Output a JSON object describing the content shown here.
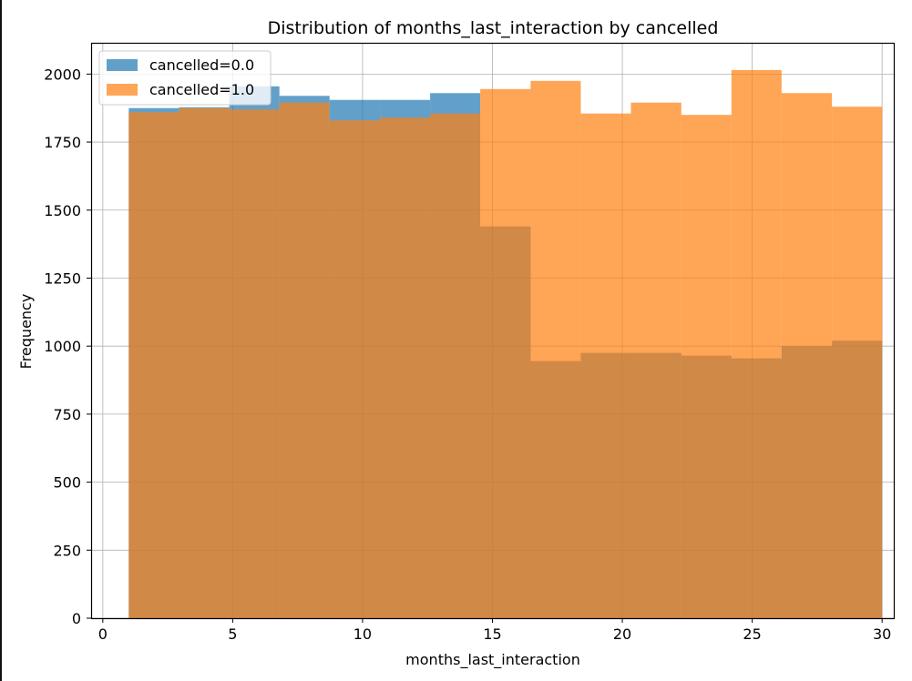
{
  "chart_data": {
    "type": "bar",
    "title": "Distribution of months_last_interaction by cancelled",
    "xlabel": "months_last_interaction",
    "ylabel": "Frequency",
    "xlim": [
      -0.45,
      30.45
    ],
    "ylim": [
      0,
      2115
    ],
    "x_ticks": [
      0,
      5,
      10,
      15,
      20,
      25,
      30
    ],
    "y_ticks": [
      0,
      250,
      500,
      750,
      1000,
      1250,
      1500,
      1750,
      2000
    ],
    "grid": true,
    "legend_position": "top-left",
    "series": [
      {
        "name": "cancelled=0.0",
        "color": "#1f77b4",
        "alpha": 0.7,
        "bin_edges": [
          1.0,
          2.93,
          4.87,
          6.8,
          8.73,
          10.67,
          12.6,
          14.53,
          16.47,
          18.4,
          20.33,
          22.27,
          24.2,
          26.13,
          28.07,
          30.0
        ],
        "values": [
          1875,
          1878,
          1955,
          1920,
          1905,
          1905,
          1930,
          1440,
          945,
          975,
          975,
          965,
          955,
          1000,
          1020
        ]
      },
      {
        "name": "cancelled=1.0",
        "color": "#ff7f0e",
        "alpha": 0.7,
        "bin_edges": [
          1.0,
          2.93,
          4.87,
          6.8,
          8.73,
          10.67,
          12.6,
          14.53,
          16.47,
          18.4,
          20.33,
          22.27,
          24.2,
          26.13,
          28.07,
          30.0
        ],
        "values": [
          1860,
          1875,
          1870,
          1895,
          1830,
          1840,
          1855,
          1945,
          1975,
          1855,
          1895,
          1850,
          2015,
          1930,
          1880
        ]
      }
    ]
  }
}
